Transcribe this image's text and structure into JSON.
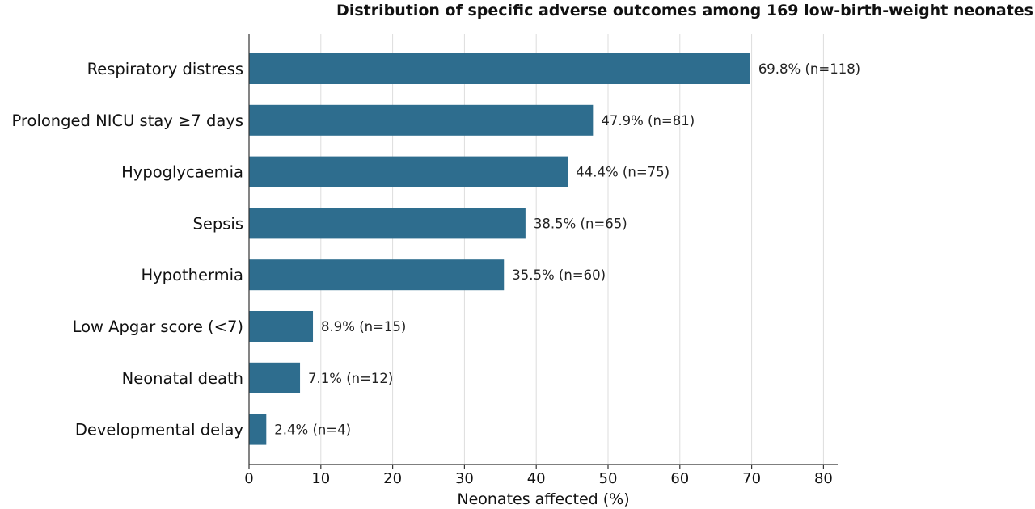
{
  "chart_data": {
    "type": "bar",
    "orientation": "horizontal",
    "title": "Distribution of specific adverse outcomes among 169 low-birth-weight neonates",
    "xlabel": "Neonates affected (%)",
    "ylabel": "",
    "xlim": [
      0,
      82
    ],
    "xticks": [
      0,
      10,
      20,
      30,
      40,
      50,
      60,
      70,
      80
    ],
    "grid": "vertical",
    "legend": "none",
    "categories": [
      "Respiratory distress",
      "Prolonged NICU stay ≥7 days",
      "Hypoglycaemia",
      "Sepsis",
      "Hypothermia",
      "Low Apgar score (<7)",
      "Neonatal death",
      "Developmental delay"
    ],
    "values": [
      69.8,
      47.9,
      44.4,
      38.5,
      35.5,
      8.9,
      7.1,
      2.4
    ],
    "data_labels": [
      "69.8% (n=118)",
      "47.9% (n=81)",
      "44.4% (n=75)",
      "38.5% (n=65)",
      "35.5% (n=60)",
      "8.9% (n=15)",
      "7.1% (n=12)",
      "2.4% (n=4)"
    ],
    "bar_color": "#2e6d8e"
  }
}
